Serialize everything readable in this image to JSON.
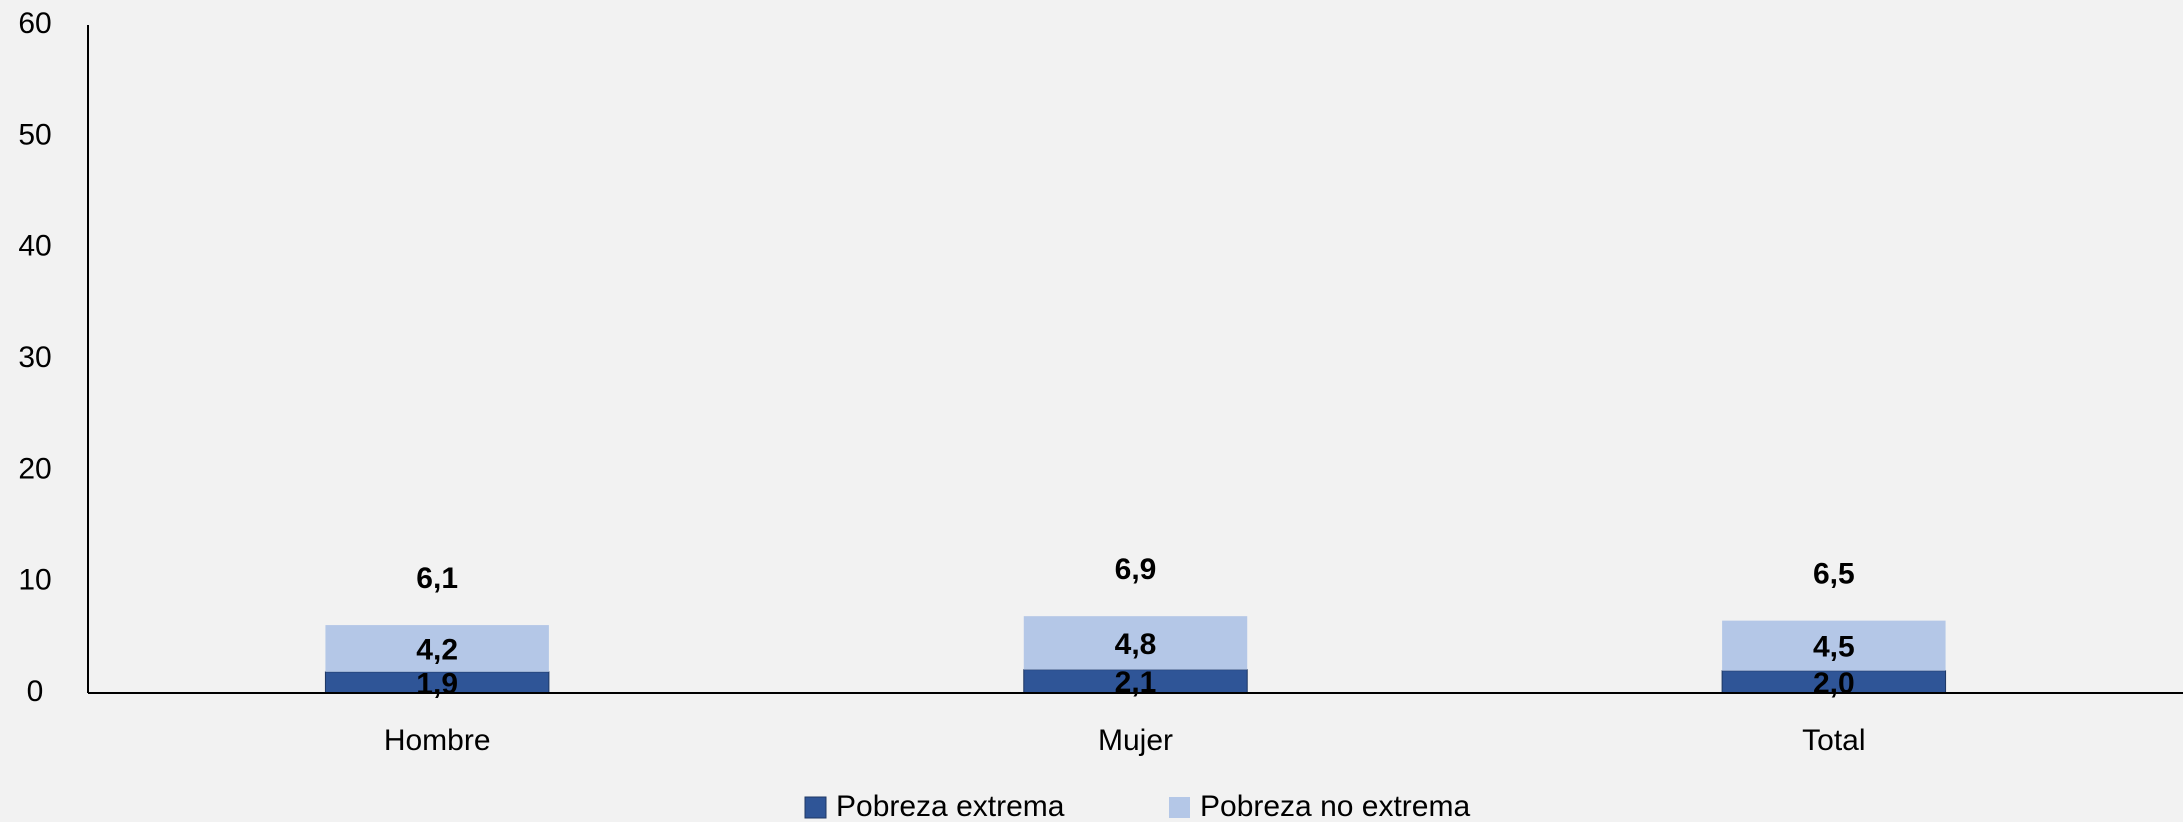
{
  "chart_data": {
    "type": "stacked_bar",
    "categories": [
      "Hombre",
      "Mujer",
      "Total"
    ],
    "series": [
      {
        "name": "Pobreza extrema",
        "color": "#2f5597",
        "values": [
          1.9,
          2.1,
          2.0
        ],
        "value_labels": [
          "1,9",
          "2,1",
          "2,0"
        ]
      },
      {
        "name": "Pobreza no extrema",
        "color": "#b4c7e7",
        "values": [
          4.2,
          4.8,
          4.5
        ],
        "value_labels": [
          "4,2",
          "4,8",
          "4,5"
        ]
      }
    ],
    "totals": [
      6.1,
      6.9,
      6.5
    ],
    "total_labels": [
      "6,1",
      "6,9",
      "6,5"
    ],
    "ylim": [
      0,
      60
    ],
    "yticks": [
      0,
      10,
      20,
      30,
      40,
      50,
      60
    ],
    "grid": false,
    "legend": "bottom"
  }
}
